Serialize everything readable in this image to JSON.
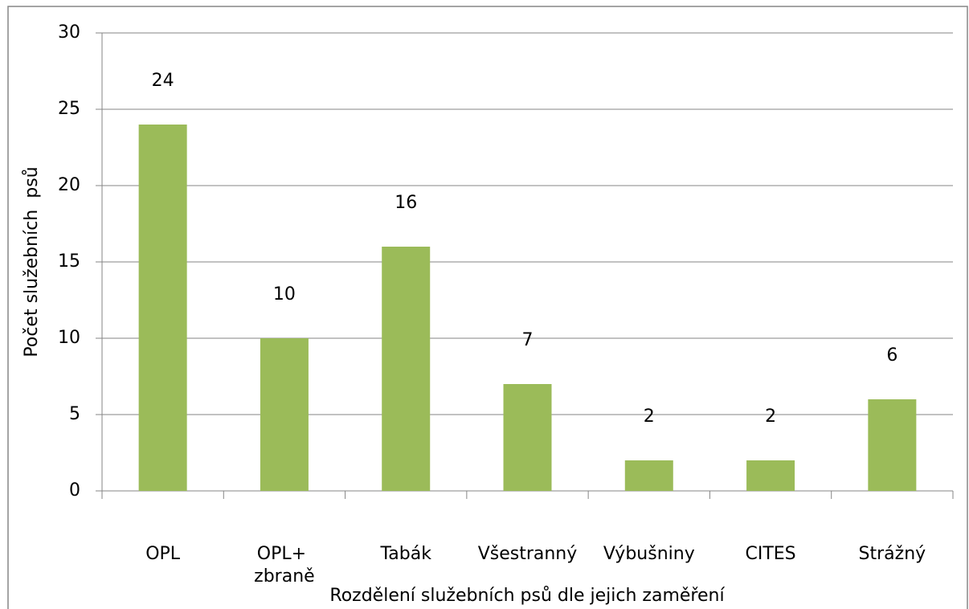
{
  "chart_data": {
    "type": "bar",
    "categories": [
      "OPL",
      "OPL+ zbraně",
      "Tabák",
      "Všestranný",
      "Výbušniny",
      "CITES",
      "Strážný"
    ],
    "values": [
      24,
      10,
      16,
      7,
      2,
      2,
      6
    ],
    "color": "#9bbb59",
    "ylim": [
      0,
      30
    ],
    "yticks": [
      0,
      5,
      10,
      15,
      20,
      25,
      30
    ],
    "grid": true,
    "ylabel": "Počet služebních  psů",
    "xlabel": "Rozdělení služebních psů dle jejich zaměření"
  }
}
